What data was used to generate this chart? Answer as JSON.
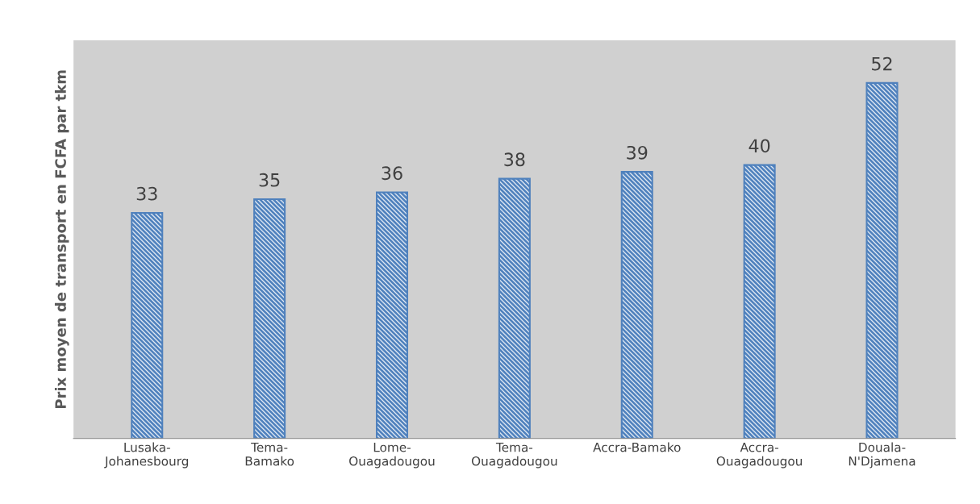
{
  "chart_data": {
    "type": "bar",
    "ylabel": "Prix moyen de transport en FCFA par tkm",
    "categories": [
      "Lusaka-\nJohanesbourg",
      "Tema-\nBamako",
      "Lome-\nOuagadougou",
      "Tema-\nOuagadougou",
      "Accra-Bamako",
      "Accra-\nOuagadougou",
      "Douala-\nN'Djamena"
    ],
    "values": [
      33,
      35,
      36,
      38,
      39,
      40,
      52
    ],
    "color": "#4f81bd",
    "data_labels": true,
    "tick_labels": "x",
    "grid": false
  }
}
